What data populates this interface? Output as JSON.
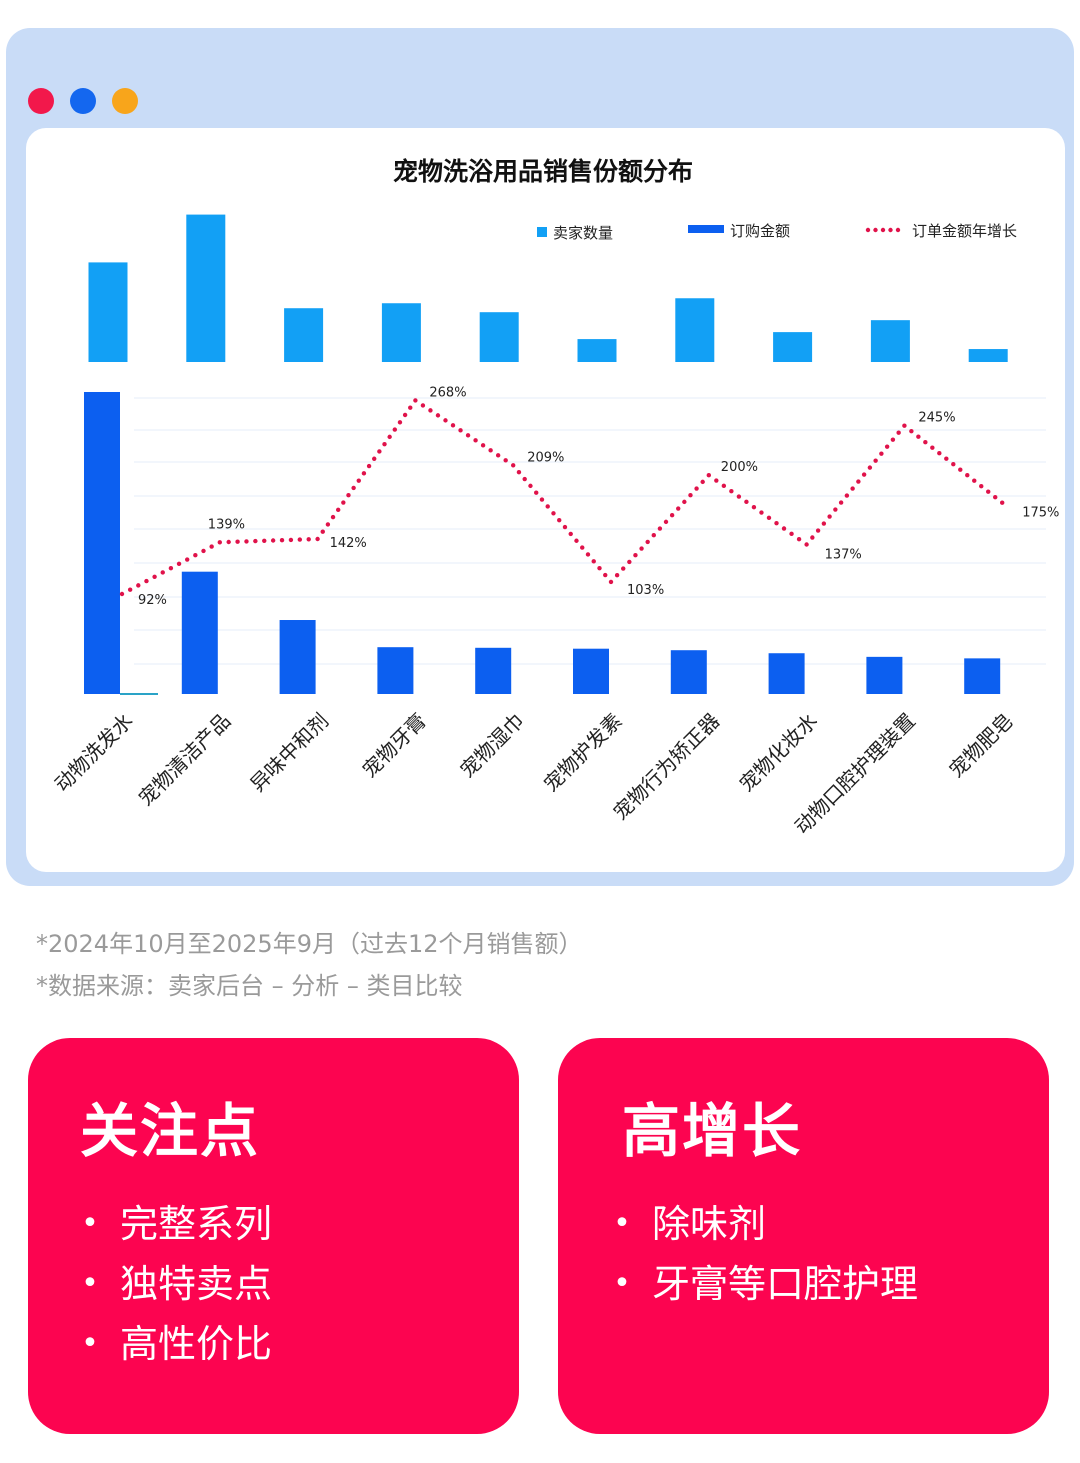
{
  "window": {
    "dot_colors": [
      "#f2184b",
      "#1467ef",
      "#f8a51b"
    ]
  },
  "chart_data": {
    "type": "bar",
    "title": "宠物洗浴用品销售份额分布",
    "categories": [
      "动物洗发水",
      "宠物清洁产品",
      "异味中和剂",
      "宠物牙膏",
      "宠物湿巾",
      "宠物护发素",
      "宠物行为矫正器",
      "宠物化妆水",
      "动物口腔护理装置",
      "宠物肥皂"
    ],
    "series": [
      {
        "name": "卖家数量",
        "type": "bar",
        "color": "#12a0f5",
        "values": [
          100,
          148,
          54,
          59,
          50,
          23,
          64,
          30,
          42,
          13
        ]
      },
      {
        "name": "订购金额",
        "type": "bar",
        "color": "#0c5ff0",
        "values": [
          100,
          40.5,
          24.5,
          15.5,
          15.3,
          15,
          14.5,
          13.5,
          12.3,
          11.8
        ]
      },
      {
        "name": "订单金额年增长",
        "type": "line",
        "style": "dotted",
        "color": "#e0124a",
        "values": [
          92,
          139,
          142,
          268,
          209,
          103,
          200,
          137,
          245,
          175
        ],
        "labels": [
          "92%",
          "139%",
          "142%",
          "268%",
          "209%",
          "103%",
          "200%",
          "137%",
          "245%",
          "175%"
        ]
      }
    ],
    "grid": true,
    "legend_position": "top-right"
  },
  "footnotes": [
    "*2024年10月至2025年9月（过去12个月销售额）",
    "*数据来源：卖家后台 – 分析 – 类目比较"
  ],
  "cards": [
    {
      "title": "关注点",
      "items": [
        "完整系列",
        "独特卖点",
        "高性价比"
      ]
    },
    {
      "title": "高增长",
      "items": [
        "除味剂",
        "牙膏等口腔护理"
      ]
    }
  ]
}
